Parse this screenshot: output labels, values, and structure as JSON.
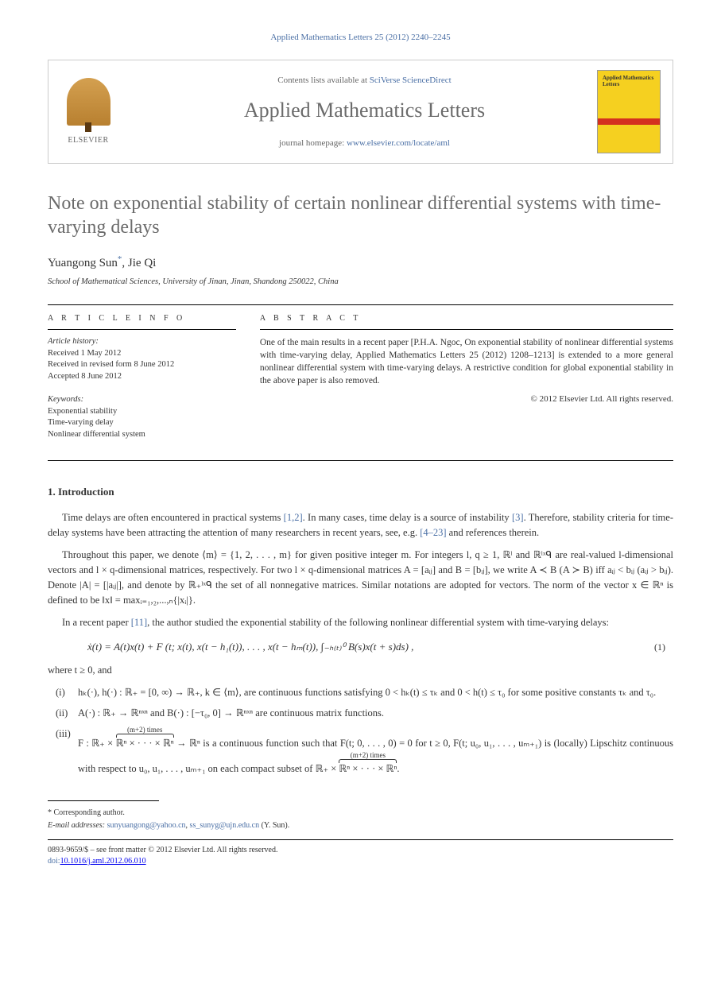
{
  "header": {
    "citation": "Applied Mathematics Letters 25 (2012) 2240–2245",
    "contents_prefix": "Contents lists available at ",
    "contents_link": "SciVerse ScienceDirect",
    "journal_name": "Applied Mathematics Letters",
    "homepage_prefix": "journal homepage: ",
    "homepage_link": "www.elsevier.com/locate/aml",
    "publisher_name": "ELSEVIER",
    "cover_title": "Applied Mathematics Letters"
  },
  "article": {
    "title": "Note on exponential stability of certain nonlinear differential systems with time-varying delays",
    "authors": "Yuangong Sun",
    "author2": ", Jie Qi",
    "corr_mark": "*",
    "affiliation": "School of Mathematical Sciences, University of Jinan, Jinan, Shandong 250022, China"
  },
  "info": {
    "label": "A R T I C L E   I N F O",
    "history_label": "Article history:",
    "received": "Received 1 May 2012",
    "revised": "Received in revised form 8 June 2012",
    "accepted": "Accepted 8 June 2012",
    "keywords_label": "Keywords:",
    "kw1": "Exponential stability",
    "kw2": "Time-varying delay",
    "kw3": "Nonlinear differential system"
  },
  "abstract": {
    "label": "A B S T R A C T",
    "text": "One of the main results in a recent paper [P.H.A. Ngoc, On exponential stability of nonlinear differential systems with time-varying delay, Applied Mathematics Letters 25 (2012) 1208–1213] is extended to a more general nonlinear differential system with time-varying delays. A restrictive condition for global exponential stability in the above paper is also removed.",
    "copyright": "© 2012 Elsevier Ltd. All rights reserved."
  },
  "section1": {
    "heading": "1. Introduction",
    "p1_a": "Time delays are often encountered in practical systems ",
    "p1_ref1": "[1,2]",
    "p1_b": ". In many cases, time delay is a source of instability ",
    "p1_ref2": "[3]",
    "p1_c": ". Therefore, stability criteria for time-delay systems have been attracting the attention of many researchers in recent years, see, e.g. ",
    "p1_ref3": "[4–23]",
    "p1_d": " and references therein.",
    "p2": "Throughout this paper, we denote ⟨m⟩ = {1, 2, . . . , m} for given positive integer m. For integers l, q ≥ 1, ℝˡ and ℝˡˣᑫ are real-valued l-dimensional vectors and l × q-dimensional matrices, respectively. For two l × q-dimensional matrices A = [aᵢⱼ] and B = [bᵢⱼ], we write A ≺ B (A ≻ B) iff aᵢⱼ < bᵢⱼ (aᵢⱼ > bᵢⱼ). Denote |A| = [|aᵢⱼ|], and denote by ℝ₊ˡˣᑫ the set of all nonnegative matrices. Similar notations are adopted for vectors. The norm of the vector x ∈ ℝⁿ is defined to be ‖x‖ = maxᵢ₌₁,₂,...,ₙ{|xᵢ|}.",
    "p3_a": "In a recent paper ",
    "p3_ref": "[11]",
    "p3_b": ", the author studied the exponential stability of the following nonlinear differential system with time-varying delays:",
    "equation1": "ẋ(t) = A(t)x(t) + F (t; x(t), x(t − h₁(t)), . . . , x(t − hₘ(t)), ∫₋ₕ₍ₜ₎⁰ B(s)x(t + s)ds) ,",
    "eq1_num": "(1)",
    "where": "where t ≥ 0, and",
    "item_i_marker": "(i)",
    "item_i": "hₖ(·), h(·) : ℝ₊ = [0, ∞) → ℝ₊, k ∈ ⟨m⟩, are continuous functions satisfying 0 < hₖ(t) ≤ τₖ and 0 < h(t) ≤ τ₀ for some positive constants τₖ and τ₀.",
    "item_ii_marker": "(ii)",
    "item_ii": "A(·) : ℝ₊ → ℝⁿˣⁿ and B(·) : [−τ₀, 0] → ℝⁿˣⁿ are continuous matrix functions.",
    "item_iii_marker": "(iii)",
    "item_iii_a": "F : ℝ₊ × ",
    "item_iii_brace1_label": "(m+2) times",
    "item_iii_brace1": "ℝⁿ × · · · × ℝⁿ",
    "item_iii_b": " → ℝⁿ is a continuous function such that F(t; 0, . . . , 0) = 0 for t ≥ 0, F(t; u₀, u₁, . . . , uₘ₊₁) is (locally) Lipschitz continuous with respect to u₀, u₁, . . . , uₘ₊₁ on each compact subset of ℝ₊ × ",
    "item_iii_brace2_label": "(m+2) times",
    "item_iii_brace2": "ℝⁿ × · · · × ℝⁿ",
    "item_iii_c": "."
  },
  "footer": {
    "corr_label": "* Corresponding author.",
    "email_label": "E-mail addresses: ",
    "email1": "sunyuangong@yahoo.cn",
    "email_sep": ", ",
    "email2": "ss_sunyg@ujn.edu.cn",
    "email_author": " (Y. Sun).",
    "issn": "0893-9659/$ – see front matter © 2012 Elsevier Ltd. All rights reserved.",
    "doi_label": "doi:",
    "doi": "10.1016/j.aml.2012.06.010"
  },
  "colors": {
    "link": "#4a6fa5",
    "text": "#333333",
    "title_gray": "#6b6b6b",
    "cover_yellow": "#f5d020",
    "cover_red": "#d4301f"
  }
}
